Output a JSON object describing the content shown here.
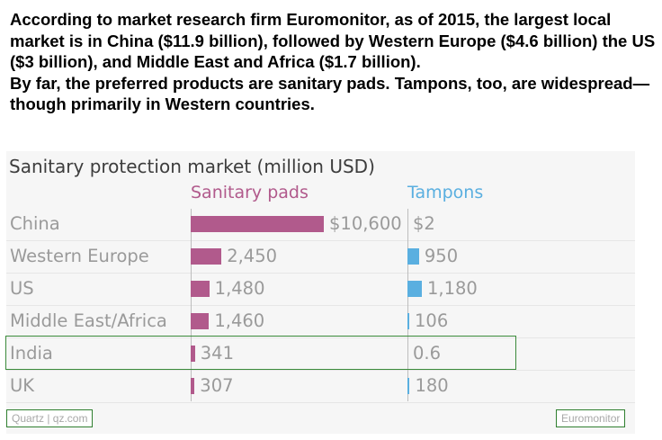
{
  "caption": {
    "para1": "According to market research firm Euromonitor, as of 2015, the largest local market is in China ($11.9 billion), followed by Western Europe ($4.6 billion) the US ($3 billion), and Middle East and Africa ($1.7 billion).",
    "para2": "By far, the preferred products are sanitary pads. Tampons, too, are widespread—though primarily in Western countries."
  },
  "footer": {
    "source_left": "Quartz | qz.com",
    "source_right": "Euromonitor"
  },
  "colors": {
    "pads": "#b15a8c",
    "tampons": "#5aafe0",
    "highlight_box": "#3a8a3a"
  },
  "chart_data": {
    "type": "bar",
    "title": "Sanitary protection market (million USD)",
    "categories": [
      "China",
      "Western Europe",
      "US",
      "Middle East/Africa",
      "India",
      "UK"
    ],
    "series": [
      {
        "name": "Sanitary pads",
        "values": [
          10600,
          2450,
          1480,
          1460,
          341,
          307
        ],
        "labels": [
          "$10,600",
          "2,450",
          "1,480",
          "1,460",
          "341",
          "307"
        ]
      },
      {
        "name": "Tampons",
        "values": [
          2,
          950,
          1180,
          106,
          0.6,
          180
        ],
        "labels": [
          "$2",
          "950",
          "1,180",
          "106",
          "0.6",
          "180"
        ]
      }
    ],
    "highlighted_category": "India",
    "grid": true,
    "legend": "column headers"
  }
}
